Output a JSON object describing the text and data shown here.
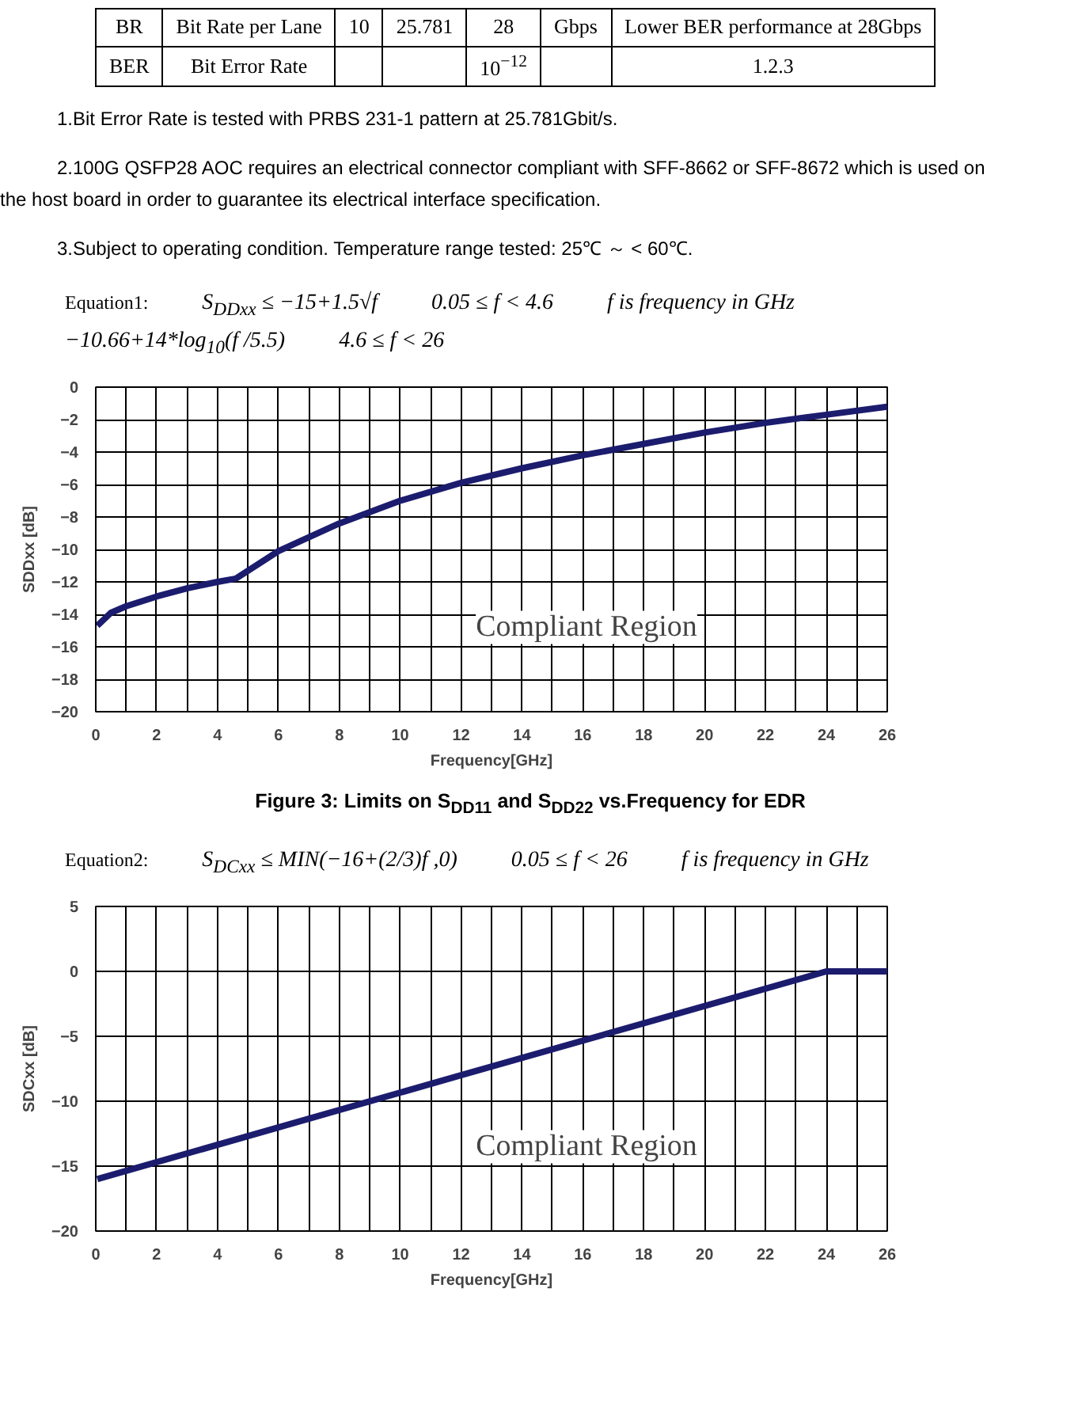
{
  "chart_data": [
    {
      "type": "other",
      "cells": [
        [
          "BR",
          "Bit Rate per Lane",
          "10",
          "25.781",
          "28",
          "Gbps",
          "Lower BER performance at 28Gbps"
        ],
        [
          "BER",
          "Bit Error Rate",
          null,
          null,
          "10$^{−12}$",
          null,
          "1.2.3"
        ]
      ],
      "annotations": [
        "1.Bit Error Rate is tested with PRBS 231-1 pattern at 25.781Gbit/s.",
        "2.100G QSFP28 AOC requires an electrical connector compliant with SFF-8662 or SFF-8672 which is used on the host board in order to guarantee its electrical interface specification.",
        "3.Subject to operating condition. Temperature range tested: 25℃ ～ < 60℃."
      ]
    },
    {
      "type": "line",
      "title": "Figure 3: Limits on S$_{DD11}$ and S$_{DD22}$ vs.Frequency for EDR",
      "xlabel": "Frequency[GHz]",
      "ylabel": "SDDxx [dB]",
      "x": [
        0.05,
        0.5,
        1,
        2,
        3,
        4,
        4.6,
        4.6,
        6,
        8,
        10,
        12,
        14,
        16,
        18,
        20,
        22,
        24,
        26
      ],
      "series": [
        {
          "color": "#1c1c6e",
          "values": [
            -14.7,
            -13.9,
            -13.5,
            -12.9,
            -12.4,
            -12.0,
            -11.8,
            -11.8,
            -10.1,
            -8.4,
            -7.0,
            -5.9,
            -5.0,
            -4.2,
            -3.5,
            -2.8,
            -2.2,
            -1.7,
            -1.2
          ]
        }
      ],
      "xlim": [
        0,
        26
      ],
      "ylim": [
        -20,
        0
      ],
      "xticks": [
        0,
        {
          "value": 1,
          "label": null
        },
        2,
        {
          "value": 3,
          "label": null
        },
        4,
        {
          "value": 5,
          "label": null
        },
        6,
        {
          "value": 7,
          "label": null
        },
        8,
        {
          "value": 9,
          "label": null
        },
        10,
        {
          "value": 11,
          "label": null
        },
        12,
        {
          "value": 13,
          "label": null
        },
        14,
        {
          "value": 15,
          "label": null
        },
        16,
        {
          "value": 17,
          "label": null
        },
        18,
        {
          "value": 19,
          "label": null
        },
        20,
        {
          "value": 21,
          "label": null
        },
        22,
        {
          "value": 23,
          "label": null
        },
        24,
        {
          "value": 25,
          "label": null
        },
        26
      ],
      "yticks": [
        -20,
        -18,
        -16,
        -14,
        -12,
        -10,
        -8,
        -6,
        -4,
        -2,
        0
      ],
      "grid": true,
      "annotations": [
        "Compliant Region",
        "Equation1:",
        "S$_{DDxx}$ ≤ −15+1.5√f",
        "0.05 ≤ f < 4.6",
        "f is frequency in GHz",
        "−10.66+14*log$_{10}$(f /5.5)",
        "4.6 ≤ f < 26"
      ]
    },
    {
      "type": "line",
      "xlabel": "Frequency[GHz]",
      "ylabel": "SDCxx [dB]",
      "x": [
        0.05,
        12,
        24,
        26
      ],
      "series": [
        {
          "color": "#1c1c6e",
          "values": [
            -16,
            -8,
            0,
            0
          ]
        }
      ],
      "xlim": [
        0,
        26
      ],
      "ylim": [
        -20,
        5
      ],
      "xticks": [
        0,
        {
          "value": 1,
          "label": null
        },
        2,
        {
          "value": 3,
          "label": null
        },
        4,
        {
          "value": 5,
          "label": null
        },
        6,
        {
          "value": 7,
          "label": null
        },
        8,
        {
          "value": 9,
          "label": null
        },
        10,
        {
          "value": 11,
          "label": null
        },
        12,
        {
          "value": 13,
          "label": null
        },
        14,
        {
          "value": 15,
          "label": null
        },
        16,
        {
          "value": 17,
          "label": null
        },
        18,
        {
          "value": 19,
          "label": null
        },
        20,
        {
          "value": 21,
          "label": null
        },
        22,
        {
          "value": 23,
          "label": null
        },
        24,
        {
          "value": 25,
          "label": null
        },
        26
      ],
      "yticks": [
        -20,
        -15,
        -10,
        -5,
        0,
        5
      ],
      "grid": true,
      "annotations": [
        "Compliant Region",
        "Equation2:",
        "S$_{DCxx}$ ≤ MIN(−16+(2/3)f ,0)",
        "0.05 ≤ f < 26",
        "f is frequency in GHz"
      ]
    }
  ]
}
